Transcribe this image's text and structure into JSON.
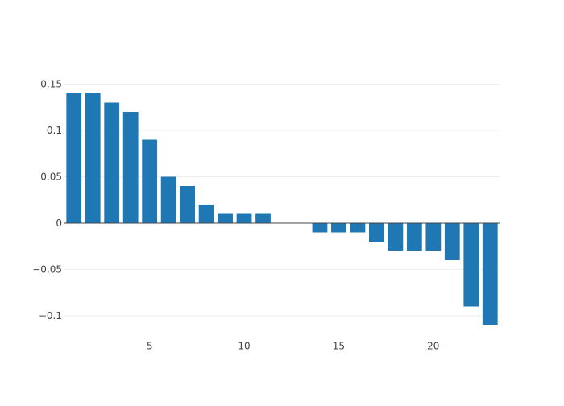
{
  "chart_data": {
    "type": "bar",
    "x": [
      1,
      2,
      3,
      4,
      5,
      6,
      7,
      8,
      9,
      10,
      11,
      12,
      13,
      14,
      15,
      16,
      17,
      18,
      19,
      20,
      21,
      22,
      23
    ],
    "values": [
      0.14,
      0.14,
      0.13,
      0.12,
      0.09,
      0.05,
      0.04,
      0.02,
      0.01,
      0.01,
      0.01,
      0,
      0,
      -0.01,
      -0.01,
      -0.01,
      -0.02,
      -0.03,
      -0.03,
      -0.03,
      -0.04,
      -0.09,
      -0.11
    ],
    "xlim": [
      0.5,
      23.5
    ],
    "ylim": [
      -0.11,
      0.15
    ],
    "x_ticks": [
      5,
      10,
      15,
      20
    ],
    "x_tick_labels": [
      "5",
      "10",
      "15",
      "20"
    ],
    "y_ticks": [
      -0.1,
      -0.05,
      0,
      0.05,
      0.1,
      0.15
    ],
    "y_tick_labels": [
      "−0.1",
      "−0.05",
      "0",
      "0.05",
      "0.1",
      "0.15"
    ],
    "grid": true,
    "bar_color": "#1f77b4",
    "grid_color": "#eeeeee",
    "zero_line_color": "#444444",
    "tick_label_color": "#444444"
  }
}
